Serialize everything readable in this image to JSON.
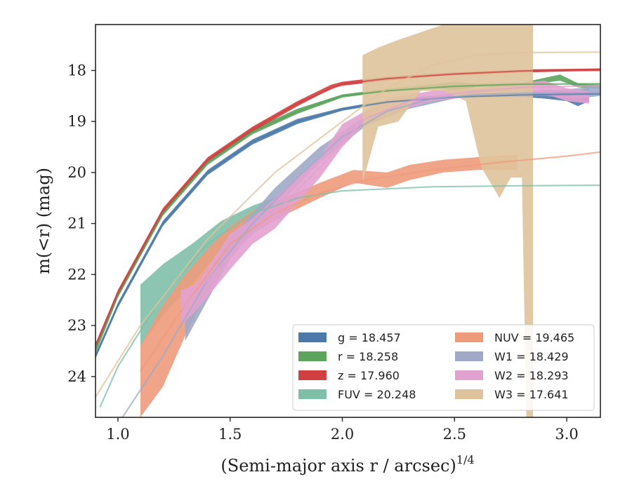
{
  "chart_data": {
    "type": "area",
    "xlabel": "(Semi-major axis r / arcsec)",
    "xlabel_sup": "1/4",
    "ylabel": "m(<r) (mag)",
    "xlim": [
      0.9,
      3.15
    ],
    "ylim": [
      24.8,
      17.1
    ],
    "y_inverted": true,
    "xticks": [
      1.0,
      1.5,
      2.0,
      2.5,
      3.0
    ],
    "xtick_labels": [
      "1.0",
      "1.5",
      "2.0",
      "2.5",
      "3.0"
    ],
    "yticks": [
      18,
      19,
      20,
      21,
      22,
      23,
      24
    ],
    "ytick_labels": [
      "18",
      "19",
      "20",
      "21",
      "22",
      "23",
      "24"
    ],
    "grid": false,
    "legend_position": "bottom-right",
    "legend_columns": 2,
    "series": [
      {
        "name": "g",
        "legend_label": "g = 18.457",
        "color": "#4c7aa8",
        "band": [
          [
            0.9,
            23.55,
            23.65
          ],
          [
            1.0,
            22.55,
            22.65
          ],
          [
            1.2,
            20.95,
            21.05
          ],
          [
            1.4,
            19.95,
            20.05
          ],
          [
            1.6,
            19.35,
            19.45
          ],
          [
            1.8,
            18.95,
            19.05
          ],
          [
            2.0,
            18.73,
            18.79
          ],
          [
            2.2,
            18.58,
            18.64
          ],
          [
            2.4,
            18.5,
            18.55
          ],
          [
            2.6,
            18.46,
            18.52
          ],
          [
            2.8,
            18.43,
            18.52
          ],
          [
            2.9,
            18.38,
            18.55
          ],
          [
            3.0,
            18.38,
            18.6
          ],
          [
            3.05,
            18.4,
            18.7
          ],
          [
            3.1,
            18.35,
            18.6
          ]
        ],
        "model": [
          [
            0.9,
            23.6
          ],
          [
            1.0,
            22.6
          ],
          [
            1.2,
            21.0
          ],
          [
            1.4,
            20.0
          ],
          [
            1.6,
            19.4
          ],
          [
            1.8,
            19.0
          ],
          [
            2.0,
            18.76
          ],
          [
            2.2,
            18.62
          ],
          [
            2.5,
            18.52
          ],
          [
            2.8,
            18.48
          ],
          [
            3.15,
            18.46
          ]
        ]
      },
      {
        "name": "r",
        "legend_label": "r = 18.258",
        "color": "#5ca35c",
        "band": [
          [
            0.9,
            23.45,
            23.55
          ],
          [
            1.0,
            22.35,
            22.45
          ],
          [
            1.2,
            20.75,
            20.85
          ],
          [
            1.4,
            19.75,
            19.85
          ],
          [
            1.6,
            19.15,
            19.25
          ],
          [
            1.8,
            18.75,
            18.85
          ],
          [
            2.0,
            18.47,
            18.53
          ],
          [
            2.2,
            18.36,
            18.42
          ],
          [
            2.4,
            18.27,
            18.33
          ],
          [
            2.5,
            18.22,
            18.4
          ],
          [
            2.6,
            18.26,
            18.32
          ],
          [
            2.8,
            18.24,
            18.3
          ],
          [
            2.97,
            18.08,
            18.2
          ],
          [
            3.05,
            18.25,
            18.33
          ],
          [
            3.15,
            18.28,
            18.36
          ]
        ],
        "model": [
          [
            0.9,
            23.5
          ],
          [
            1.0,
            22.4
          ],
          [
            1.2,
            20.8
          ],
          [
            1.4,
            19.8
          ],
          [
            1.6,
            19.2
          ],
          [
            1.8,
            18.8
          ],
          [
            2.0,
            18.5
          ],
          [
            2.2,
            18.4
          ],
          [
            2.5,
            18.31
          ],
          [
            2.8,
            18.27
          ],
          [
            3.15,
            18.26
          ]
        ]
      },
      {
        "name": "z",
        "legend_label": "z = 17.960",
        "color": "#d04040",
        "band": [
          [
            0.9,
            23.35,
            23.45
          ],
          [
            1.0,
            22.3,
            22.4
          ],
          [
            1.2,
            20.7,
            20.8
          ],
          [
            1.4,
            19.7,
            19.8
          ],
          [
            1.6,
            19.1,
            19.2
          ],
          [
            1.8,
            18.6,
            18.7
          ],
          [
            1.95,
            18.28,
            18.36
          ],
          [
            2.0,
            18.22,
            18.3
          ],
          [
            2.2,
            18.12,
            18.2
          ],
          [
            2.4,
            18.06,
            18.12
          ],
          [
            2.6,
            18.02,
            18.08
          ],
          [
            2.8,
            17.98,
            18.04
          ],
          [
            3.0,
            17.97,
            18.02
          ],
          [
            3.15,
            17.96,
            18.01
          ]
        ],
        "model": [
          [
            0.9,
            23.4
          ],
          [
            1.0,
            22.35
          ],
          [
            1.2,
            20.75
          ],
          [
            1.4,
            19.75
          ],
          [
            1.6,
            19.15
          ],
          [
            1.8,
            18.65
          ],
          [
            2.0,
            18.26
          ],
          [
            2.2,
            18.16
          ],
          [
            2.5,
            18.07
          ],
          [
            2.8,
            18.01
          ],
          [
            3.15,
            17.98
          ]
        ]
      },
      {
        "name": "FUV",
        "legend_label": "FUV = 20.248",
        "color": "#7fbfa8",
        "band": [
          [
            1.1,
            22.2,
            23.4
          ],
          [
            1.2,
            21.8,
            22.8
          ],
          [
            1.33,
            21.4,
            22.2
          ],
          [
            1.46,
            20.95,
            21.5
          ],
          [
            1.6,
            20.65,
            21.0
          ],
          [
            1.73,
            20.45,
            20.9
          ]
        ],
        "model": [
          [
            0.92,
            24.6
          ],
          [
            1.0,
            23.8
          ],
          [
            1.2,
            22.4
          ],
          [
            1.4,
            21.4
          ],
          [
            1.6,
            20.8
          ],
          [
            1.8,
            20.5
          ],
          [
            2.0,
            20.36
          ],
          [
            2.4,
            20.28
          ],
          [
            2.8,
            20.26
          ],
          [
            3.15,
            20.25
          ]
        ]
      },
      {
        "name": "NUV",
        "legend_label": "NUV = 19.465",
        "color": "#ee9b7c",
        "band": [
          [
            1.1,
            23.4,
            24.8
          ],
          [
            1.2,
            22.6,
            24.2
          ],
          [
            1.3,
            22.0,
            23.2
          ],
          [
            1.4,
            21.5,
            22.3
          ],
          [
            1.5,
            21.05,
            21.6
          ],
          [
            1.6,
            20.75,
            21.2
          ],
          [
            1.75,
            20.48,
            20.82
          ],
          [
            1.9,
            20.2,
            20.5
          ],
          [
            2.05,
            19.95,
            20.2
          ],
          [
            2.2,
            20.0,
            20.3
          ],
          [
            2.3,
            19.85,
            20.15
          ],
          [
            2.45,
            19.75,
            20.0
          ],
          [
            2.6,
            19.7,
            19.95
          ],
          [
            2.78,
            19.65,
            19.95
          ]
        ],
        "model": [
          [
            1.1,
            23.9
          ],
          [
            1.3,
            22.6
          ],
          [
            1.5,
            21.4
          ],
          [
            1.7,
            20.8
          ],
          [
            1.9,
            20.4
          ],
          [
            2.1,
            20.15
          ],
          [
            2.4,
            19.95
          ],
          [
            2.7,
            19.8
          ],
          [
            3.0,
            19.68
          ],
          [
            3.15,
            19.6
          ]
        ]
      },
      {
        "name": "W1",
        "legend_label": "W1 = 18.429",
        "color": "#a0aac8",
        "band": [
          [
            1.3,
            22.9,
            23.3
          ],
          [
            1.5,
            21.3,
            21.7
          ],
          [
            1.7,
            20.3,
            20.7
          ],
          [
            1.9,
            19.5,
            19.8
          ],
          [
            2.1,
            18.9,
            19.1
          ],
          [
            2.3,
            18.6,
            18.75
          ],
          [
            2.5,
            18.45,
            18.55
          ],
          [
            2.7,
            18.42,
            18.5
          ],
          [
            2.9,
            18.4,
            18.5
          ],
          [
            3.05,
            18.35,
            18.55
          ],
          [
            3.15,
            18.3,
            18.5
          ]
        ],
        "model": [
          [
            1.02,
            24.8
          ],
          [
            1.2,
            23.6
          ],
          [
            1.4,
            22.1
          ],
          [
            1.6,
            21.0
          ],
          [
            1.8,
            20.1
          ],
          [
            2.0,
            19.3
          ],
          [
            2.2,
            18.8
          ],
          [
            2.4,
            18.55
          ],
          [
            2.6,
            18.47
          ],
          [
            2.9,
            18.44
          ],
          [
            3.15,
            18.43
          ]
        ]
      },
      {
        "name": "W2",
        "legend_label": "W2 = 18.293",
        "color": "#e2a2d0",
        "band": [
          [
            1.28,
            22.3,
            23.0
          ],
          [
            1.35,
            22.2,
            22.7
          ],
          [
            1.5,
            21.2,
            21.9
          ],
          [
            1.6,
            20.9,
            21.4
          ],
          [
            1.7,
            20.5,
            21.1
          ],
          [
            1.8,
            20.1,
            20.6
          ],
          [
            1.9,
            19.7,
            20.1
          ],
          [
            2.0,
            19.05,
            19.5
          ],
          [
            2.1,
            18.8,
            19.05
          ],
          [
            2.2,
            18.55,
            18.85
          ],
          [
            2.4,
            18.4,
            18.6
          ],
          [
            2.6,
            18.35,
            18.5
          ],
          [
            2.8,
            18.25,
            18.4
          ],
          [
            2.9,
            18.2,
            18.45
          ],
          [
            3.0,
            18.35,
            18.6
          ],
          [
            3.1,
            18.4,
            18.65
          ]
        ],
        "model": [
          [
            1.28,
            22.7
          ],
          [
            1.5,
            21.6
          ],
          [
            1.7,
            20.8
          ],
          [
            1.9,
            19.9
          ],
          [
            2.1,
            18.95
          ],
          [
            2.3,
            18.6
          ],
          [
            2.5,
            18.45
          ],
          [
            2.8,
            18.33
          ],
          [
            3.15,
            18.3
          ]
        ]
      },
      {
        "name": "W3",
        "legend_label": "W3 = 17.641",
        "color": "#dfc39c",
        "band": [
          [
            2.09,
            17.7,
            20.2
          ],
          [
            2.16,
            17.55,
            19.1
          ],
          [
            2.25,
            17.4,
            19.0
          ],
          [
            2.35,
            17.25,
            18.4
          ],
          [
            2.45,
            17.1,
            18.4
          ],
          [
            2.55,
            17.1,
            18.6
          ],
          [
            2.62,
            17.1,
            19.9
          ],
          [
            2.7,
            17.1,
            20.5
          ],
          [
            2.75,
            17.1,
            20.1
          ],
          [
            2.8,
            17.1,
            20.1
          ],
          [
            2.82,
            17.1,
            24.8
          ],
          [
            2.85,
            17.1,
            24.8
          ]
        ],
        "model": [
          [
            0.9,
            24.4
          ],
          [
            1.1,
            23.0
          ],
          [
            1.4,
            21.3
          ],
          [
            1.7,
            20.0
          ],
          [
            2.0,
            19.0
          ],
          [
            2.2,
            18.35
          ],
          [
            2.4,
            17.9
          ],
          [
            2.6,
            17.7
          ],
          [
            2.8,
            17.65
          ],
          [
            3.15,
            17.64
          ]
        ]
      }
    ]
  }
}
